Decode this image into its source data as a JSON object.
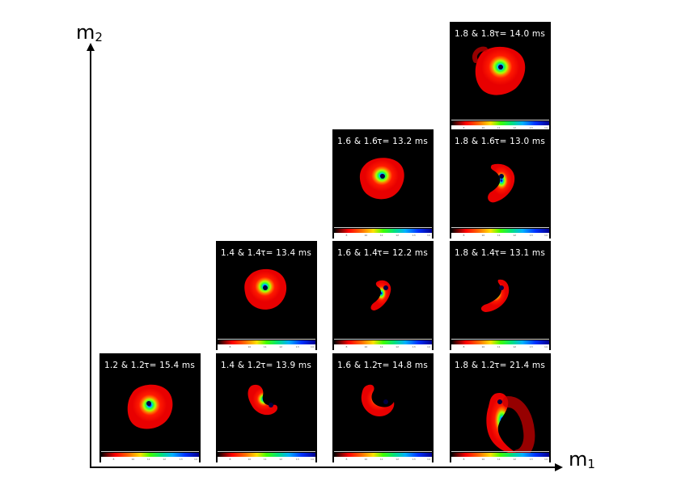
{
  "axes": {
    "y_label_main": "m",
    "y_label_sub": "2",
    "x_label_main": "m",
    "x_label_sub": "1"
  },
  "panels": [
    {
      "label": "1.8 & 1.8",
      "time": "τ= 14.0 ms",
      "shape": "blob-large",
      "row": 0,
      "col": 3
    },
    {
      "label": "1.6 & 1.6",
      "time": "τ= 13.2 ms",
      "shape": "blob-spiral",
      "row": 1,
      "col": 2
    },
    {
      "label": "1.8 & 1.6",
      "time": "τ= 13.0 ms",
      "shape": "crescent-wide",
      "row": 1,
      "col": 3
    },
    {
      "label": "1.4 & 1.4",
      "time": "τ= 13.4 ms",
      "shape": "blob-round",
      "row": 2,
      "col": 1
    },
    {
      "label": "1.6 & 1.4",
      "time": "τ= 12.2 ms",
      "shape": "crescent-small",
      "row": 2,
      "col": 2
    },
    {
      "label": "1.8 & 1.4",
      "time": "τ= 13.1 ms",
      "shape": "crescent-hook",
      "row": 2,
      "col": 3
    },
    {
      "label": "1.2 & 1.2",
      "time": "τ= 15.4 ms",
      "shape": "blob-ragged",
      "row": 3,
      "col": 0
    },
    {
      "label": "1.4 & 1.2",
      "time": "τ= 13.9 ms",
      "shape": "crescent-left",
      "row": 3,
      "col": 1
    },
    {
      "label": "1.6 & 1.2",
      "time": "τ= 14.8 ms",
      "shape": "crescent-arc",
      "row": 3,
      "col": 2
    },
    {
      "label": "1.8 & 1.2",
      "time": "τ= 21.4 ms",
      "shape": "tail-long",
      "row": 3,
      "col": 3
    }
  ],
  "colorbar": {
    "ticks": [
      "8",
      "10",
      "11",
      "12",
      "13",
      "14"
    ]
  }
}
